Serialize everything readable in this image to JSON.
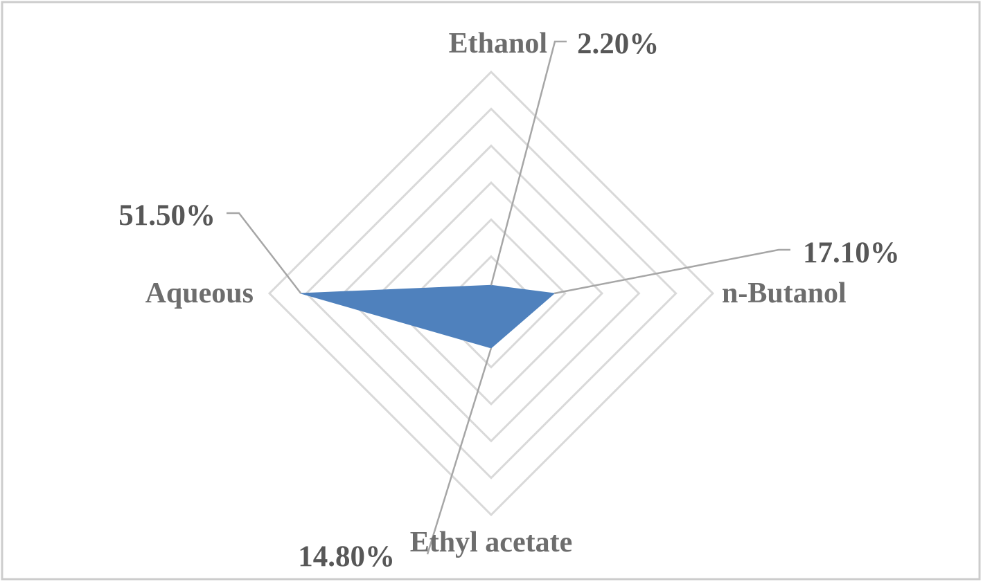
{
  "chart_data": {
    "type": "radar",
    "categories": [
      "Ethanol",
      "n-Butanol",
      "Ethyl acetate",
      "Aqueous"
    ],
    "series": [
      {
        "values": [
          2.2,
          17.1,
          14.8,
          51.5
        ],
        "value_labels": [
          "2.20%",
          "17.10%",
          "14.80%",
          "51.50%"
        ],
        "color": "#4f81bd"
      }
    ],
    "rlim": [
      0,
      60
    ],
    "gridline_levels": [
      10,
      20,
      30,
      40,
      50,
      60
    ],
    "grid": true,
    "legend": "none",
    "colors": {
      "grid": "#d9d9d9",
      "leader_lines": "#a6a6a6",
      "frame": "#cccccc"
    }
  }
}
